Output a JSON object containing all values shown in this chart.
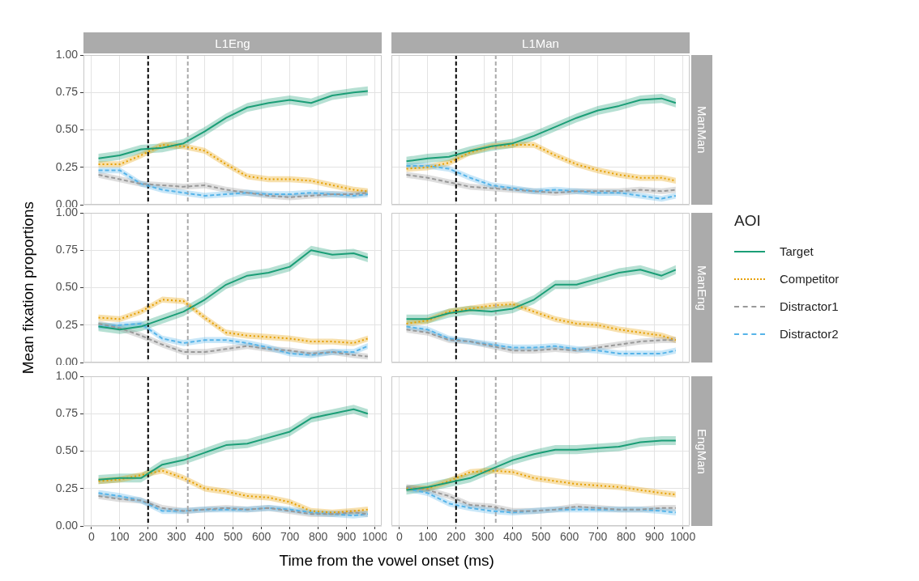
{
  "chart_data": [
    {
      "type": "line",
      "title": "L1Eng",
      "tick_labels": "y",
      "x": [
        25,
        100,
        175,
        250,
        325,
        400,
        475,
        550,
        625,
        700,
        775,
        850,
        925,
        975
      ],
      "xlim": [
        -28,
        1024
      ],
      "xticks": [
        0,
        100,
        200,
        300,
        400,
        500,
        600,
        700,
        800,
        900,
        1000
      ],
      "ylim": [
        0,
        1
      ],
      "yticks": [
        {
          "value": 0,
          "label": "0.00"
        },
        {
          "value": 0.25,
          "label": "0.25"
        },
        {
          "value": 0.5,
          "label": "0.50"
        },
        {
          "value": 0.75,
          "label": "0.75"
        },
        {
          "value": 1,
          "label": "1.00"
        }
      ],
      "grid": true,
      "ref_lines": [
        {
          "axis": "x",
          "value": 200,
          "color": "#000000",
          "line_style": "dashed"
        },
        {
          "axis": "x",
          "value": 340,
          "color": "#aaaaaa",
          "line_style": "dashed"
        }
      ],
      "series": [
        {
          "color": "#1b9e77",
          "line_style": "solid",
          "values": [
            0.31,
            0.33,
            0.37,
            0.38,
            0.41,
            0.49,
            0.58,
            0.65,
            0.68,
            0.7,
            0.68,
            0.73,
            0.75,
            0.76
          ],
          "lower": [
            0.28,
            0.3,
            0.34,
            0.35,
            0.38,
            0.46,
            0.55,
            0.62,
            0.65,
            0.67,
            0.65,
            0.7,
            0.72,
            0.73
          ],
          "upper": [
            0.34,
            0.36,
            0.4,
            0.41,
            0.44,
            0.52,
            0.61,
            0.68,
            0.71,
            0.73,
            0.71,
            0.76,
            0.78,
            0.79
          ]
        },
        {
          "color": "#e69f00",
          "line_style": "dotted",
          "values": [
            0.27,
            0.27,
            0.33,
            0.4,
            0.39,
            0.36,
            0.27,
            0.19,
            0.17,
            0.17,
            0.16,
            0.13,
            0.1,
            0.09
          ],
          "lower": [
            0.25,
            0.25,
            0.31,
            0.38,
            0.37,
            0.34,
            0.25,
            0.17,
            0.15,
            0.15,
            0.14,
            0.11,
            0.08,
            0.07
          ],
          "upper": [
            0.29,
            0.29,
            0.35,
            0.42,
            0.41,
            0.38,
            0.29,
            0.21,
            0.19,
            0.19,
            0.18,
            0.15,
            0.12,
            0.11
          ]
        },
        {
          "color": "#999999",
          "line_style": "dashed",
          "values": [
            0.2,
            0.17,
            0.14,
            0.13,
            0.12,
            0.13,
            0.1,
            0.08,
            0.06,
            0.05,
            0.06,
            0.07,
            0.07,
            0.08
          ],
          "lower": [
            0.18,
            0.15,
            0.12,
            0.11,
            0.1,
            0.11,
            0.08,
            0.06,
            0.04,
            0.03,
            0.04,
            0.05,
            0.05,
            0.06
          ],
          "upper": [
            0.22,
            0.19,
            0.16,
            0.15,
            0.14,
            0.15,
            0.12,
            0.1,
            0.08,
            0.07,
            0.08,
            0.09,
            0.09,
            0.1
          ]
        },
        {
          "color": "#56b4e9",
          "line_style": "dashed",
          "values": [
            0.23,
            0.23,
            0.14,
            0.1,
            0.08,
            0.06,
            0.07,
            0.08,
            0.07,
            0.07,
            0.08,
            0.07,
            0.06,
            0.07
          ],
          "lower": [
            0.21,
            0.21,
            0.12,
            0.08,
            0.06,
            0.04,
            0.05,
            0.06,
            0.05,
            0.05,
            0.06,
            0.05,
            0.04,
            0.05
          ],
          "upper": [
            0.25,
            0.25,
            0.16,
            0.12,
            0.1,
            0.08,
            0.09,
            0.1,
            0.09,
            0.09,
            0.1,
            0.09,
            0.08,
            0.09
          ]
        }
      ]
    },
    {
      "type": "line",
      "title": "L1Man",
      "y2label": "ManMan",
      "tick_labels": false,
      "x": [
        25,
        100,
        175,
        250,
        325,
        400,
        475,
        550,
        625,
        700,
        775,
        850,
        925,
        975
      ],
      "xlim": [
        -28,
        1024
      ],
      "xticks": [
        0,
        100,
        200,
        300,
        400,
        500,
        600,
        700,
        800,
        900,
        1000
      ],
      "ylim": [
        0,
        1
      ],
      "yticks": [
        0,
        0.25,
        0.5,
        0.75,
        1
      ],
      "grid": true,
      "ref_lines": [
        {
          "axis": "x",
          "value": 200,
          "color": "#000000",
          "line_style": "dashed"
        },
        {
          "axis": "x",
          "value": 340,
          "color": "#aaaaaa",
          "line_style": "dashed"
        }
      ],
      "series": [
        {
          "color": "#1b9e77",
          "line_style": "solid",
          "values": [
            0.29,
            0.31,
            0.32,
            0.36,
            0.39,
            0.41,
            0.46,
            0.52,
            0.58,
            0.63,
            0.66,
            0.7,
            0.71,
            0.68
          ],
          "lower": [
            0.26,
            0.28,
            0.29,
            0.33,
            0.36,
            0.38,
            0.43,
            0.49,
            0.55,
            0.6,
            0.63,
            0.67,
            0.68,
            0.65
          ],
          "upper": [
            0.32,
            0.34,
            0.35,
            0.39,
            0.42,
            0.44,
            0.49,
            0.55,
            0.61,
            0.66,
            0.69,
            0.73,
            0.74,
            0.71
          ]
        },
        {
          "color": "#e69f00",
          "line_style": "dotted",
          "values": [
            0.24,
            0.25,
            0.28,
            0.35,
            0.39,
            0.4,
            0.4,
            0.33,
            0.27,
            0.23,
            0.2,
            0.18,
            0.18,
            0.16
          ],
          "lower": [
            0.22,
            0.23,
            0.26,
            0.33,
            0.37,
            0.38,
            0.38,
            0.31,
            0.25,
            0.21,
            0.18,
            0.16,
            0.16,
            0.14
          ],
          "upper": [
            0.26,
            0.27,
            0.3,
            0.37,
            0.41,
            0.42,
            0.42,
            0.35,
            0.29,
            0.25,
            0.22,
            0.2,
            0.2,
            0.18
          ]
        },
        {
          "color": "#999999",
          "line_style": "dashed",
          "values": [
            0.2,
            0.18,
            0.15,
            0.12,
            0.11,
            0.1,
            0.09,
            0.08,
            0.09,
            0.09,
            0.09,
            0.1,
            0.09,
            0.1
          ],
          "lower": [
            0.18,
            0.16,
            0.13,
            0.1,
            0.09,
            0.08,
            0.07,
            0.06,
            0.07,
            0.07,
            0.07,
            0.08,
            0.07,
            0.08
          ],
          "upper": [
            0.22,
            0.2,
            0.17,
            0.14,
            0.13,
            0.12,
            0.11,
            0.1,
            0.11,
            0.11,
            0.11,
            0.12,
            0.11,
            0.12
          ]
        },
        {
          "color": "#56b4e9",
          "line_style": "dashed",
          "values": [
            0.26,
            0.26,
            0.24,
            0.18,
            0.13,
            0.11,
            0.09,
            0.1,
            0.09,
            0.08,
            0.08,
            0.06,
            0.04,
            0.06
          ],
          "lower": [
            0.24,
            0.24,
            0.22,
            0.16,
            0.11,
            0.09,
            0.07,
            0.08,
            0.07,
            0.06,
            0.06,
            0.04,
            0.02,
            0.04
          ],
          "upper": [
            0.28,
            0.28,
            0.26,
            0.2,
            0.15,
            0.13,
            0.11,
            0.12,
            0.11,
            0.1,
            0.1,
            0.08,
            0.06,
            0.08
          ]
        }
      ]
    },
    {
      "type": "line",
      "ylabel": "Mean fixation proportions",
      "tick_labels": "y",
      "x": [
        25,
        100,
        175,
        250,
        325,
        400,
        475,
        550,
        625,
        700,
        775,
        850,
        925,
        975
      ],
      "xlim": [
        -28,
        1024
      ],
      "xticks": [
        0,
        100,
        200,
        300,
        400,
        500,
        600,
        700,
        800,
        900,
        1000
      ],
      "ylim": [
        0,
        1
      ],
      "yticks": [
        {
          "value": 0,
          "label": "0.00"
        },
        {
          "value": 0.25,
          "label": "0.25"
        },
        {
          "value": 0.5,
          "label": "0.50"
        },
        {
          "value": 0.75,
          "label": "0.75"
        },
        {
          "value": 1,
          "label": "1.00"
        }
      ],
      "grid": true,
      "ref_lines": [
        {
          "axis": "x",
          "value": 200,
          "color": "#000000",
          "line_style": "dashed"
        },
        {
          "axis": "x",
          "value": 340,
          "color": "#aaaaaa",
          "line_style": "dashed"
        }
      ],
      "series": [
        {
          "color": "#1b9e77",
          "line_style": "solid",
          "values": [
            0.24,
            0.22,
            0.24,
            0.29,
            0.34,
            0.42,
            0.52,
            0.58,
            0.6,
            0.64,
            0.75,
            0.72,
            0.73,
            0.7
          ],
          "lower": [
            0.21,
            0.19,
            0.21,
            0.26,
            0.31,
            0.39,
            0.49,
            0.55,
            0.57,
            0.61,
            0.72,
            0.69,
            0.7,
            0.67
          ],
          "upper": [
            0.27,
            0.25,
            0.27,
            0.32,
            0.37,
            0.45,
            0.55,
            0.61,
            0.63,
            0.67,
            0.78,
            0.75,
            0.76,
            0.73
          ]
        },
        {
          "color": "#e69f00",
          "line_style": "dotted",
          "values": [
            0.3,
            0.29,
            0.34,
            0.42,
            0.41,
            0.3,
            0.2,
            0.18,
            0.17,
            0.16,
            0.14,
            0.14,
            0.13,
            0.16
          ],
          "lower": [
            0.28,
            0.27,
            0.32,
            0.4,
            0.39,
            0.28,
            0.18,
            0.16,
            0.15,
            0.14,
            0.12,
            0.12,
            0.11,
            0.14
          ],
          "upper": [
            0.32,
            0.31,
            0.36,
            0.44,
            0.43,
            0.32,
            0.22,
            0.2,
            0.19,
            0.18,
            0.16,
            0.16,
            0.15,
            0.18
          ]
        },
        {
          "color": "#999999",
          "line_style": "dashed",
          "values": [
            0.26,
            0.23,
            0.18,
            0.12,
            0.07,
            0.07,
            0.09,
            0.11,
            0.09,
            0.08,
            0.06,
            0.07,
            0.05,
            0.04
          ],
          "lower": [
            0.24,
            0.21,
            0.16,
            0.1,
            0.05,
            0.05,
            0.07,
            0.09,
            0.07,
            0.06,
            0.04,
            0.05,
            0.03,
            0.02
          ],
          "upper": [
            0.28,
            0.25,
            0.2,
            0.14,
            0.09,
            0.09,
            0.11,
            0.13,
            0.11,
            0.1,
            0.08,
            0.09,
            0.07,
            0.06
          ]
        },
        {
          "color": "#56b4e9",
          "line_style": "dashed",
          "values": [
            0.24,
            0.25,
            0.26,
            0.16,
            0.13,
            0.15,
            0.15,
            0.13,
            0.1,
            0.06,
            0.05,
            0.07,
            0.07,
            0.11
          ],
          "lower": [
            0.22,
            0.23,
            0.24,
            0.14,
            0.11,
            0.13,
            0.13,
            0.11,
            0.08,
            0.04,
            0.03,
            0.05,
            0.05,
            0.09
          ],
          "upper": [
            0.26,
            0.27,
            0.28,
            0.18,
            0.15,
            0.17,
            0.17,
            0.15,
            0.12,
            0.08,
            0.07,
            0.09,
            0.09,
            0.13
          ]
        }
      ]
    },
    {
      "type": "line",
      "y2label": "ManEng",
      "tick_labels": false,
      "legend": "right",
      "legend_title": "AOI",
      "x": [
        25,
        100,
        175,
        250,
        325,
        400,
        475,
        550,
        625,
        700,
        775,
        850,
        925,
        975
      ],
      "xlim": [
        -28,
        1024
      ],
      "xticks": [
        0,
        100,
        200,
        300,
        400,
        500,
        600,
        700,
        800,
        900,
        1000
      ],
      "ylim": [
        0,
        1
      ],
      "yticks": [
        0,
        0.25,
        0.5,
        0.75,
        1
      ],
      "grid": true,
      "ref_lines": [
        {
          "axis": "x",
          "value": 200,
          "color": "#000000",
          "line_style": "dashed"
        },
        {
          "axis": "x",
          "value": 340,
          "color": "#aaaaaa",
          "line_style": "dashed"
        }
      ],
      "series": [
        {
          "name": "Target",
          "color": "#1b9e77",
          "line_style": "solid",
          "values": [
            0.29,
            0.29,
            0.33,
            0.35,
            0.34,
            0.36,
            0.42,
            0.52,
            0.52,
            0.56,
            0.6,
            0.62,
            0.58,
            0.62
          ],
          "lower": [
            0.26,
            0.26,
            0.3,
            0.32,
            0.31,
            0.33,
            0.39,
            0.49,
            0.49,
            0.53,
            0.57,
            0.59,
            0.55,
            0.59
          ],
          "upper": [
            0.32,
            0.32,
            0.36,
            0.38,
            0.37,
            0.39,
            0.45,
            0.55,
            0.55,
            0.59,
            0.63,
            0.65,
            0.61,
            0.65
          ]
        },
        {
          "name": "Competitor",
          "color": "#e69f00",
          "line_style": "dotted",
          "values": [
            0.26,
            0.28,
            0.34,
            0.36,
            0.38,
            0.39,
            0.34,
            0.29,
            0.26,
            0.25,
            0.22,
            0.2,
            0.18,
            0.15
          ],
          "lower": [
            0.24,
            0.26,
            0.32,
            0.34,
            0.36,
            0.37,
            0.32,
            0.27,
            0.24,
            0.23,
            0.2,
            0.18,
            0.16,
            0.13
          ],
          "upper": [
            0.28,
            0.3,
            0.36,
            0.38,
            0.4,
            0.41,
            0.36,
            0.31,
            0.28,
            0.27,
            0.24,
            0.22,
            0.2,
            0.17
          ]
        },
        {
          "name": "Distractor1",
          "color": "#999999",
          "line_style": "dashed",
          "values": [
            0.22,
            0.2,
            0.15,
            0.14,
            0.11,
            0.08,
            0.08,
            0.09,
            0.08,
            0.1,
            0.12,
            0.14,
            0.15,
            0.15
          ],
          "lower": [
            0.2,
            0.18,
            0.13,
            0.12,
            0.09,
            0.06,
            0.06,
            0.07,
            0.06,
            0.08,
            0.1,
            0.12,
            0.13,
            0.13
          ],
          "upper": [
            0.24,
            0.22,
            0.17,
            0.16,
            0.13,
            0.1,
            0.1,
            0.11,
            0.1,
            0.12,
            0.14,
            0.16,
            0.17,
            0.17
          ]
        },
        {
          "name": "Distractor2",
          "color": "#56b4e9",
          "line_style": "dashed",
          "values": [
            0.24,
            0.22,
            0.16,
            0.14,
            0.12,
            0.1,
            0.1,
            0.11,
            0.09,
            0.08,
            0.06,
            0.06,
            0.06,
            0.08
          ],
          "lower": [
            0.22,
            0.2,
            0.14,
            0.12,
            0.1,
            0.08,
            0.08,
            0.09,
            0.07,
            0.06,
            0.04,
            0.04,
            0.04,
            0.06
          ],
          "upper": [
            0.26,
            0.24,
            0.18,
            0.16,
            0.14,
            0.12,
            0.12,
            0.13,
            0.11,
            0.1,
            0.08,
            0.08,
            0.08,
            0.1
          ]
        }
      ]
    },
    {
      "type": "line",
      "xlabel": "Time from the vowel onset (ms)",
      "x": [
        25,
        100,
        175,
        250,
        325,
        400,
        475,
        550,
        625,
        700,
        775,
        850,
        925,
        975
      ],
      "xlim": [
        -28,
        1024
      ],
      "xticks": [
        0,
        100,
        200,
        300,
        400,
        500,
        600,
        700,
        800,
        900,
        1000
      ],
      "ylim": [
        0,
        1
      ],
      "yticks": [
        {
          "value": 0,
          "label": "0.00"
        },
        {
          "value": 0.25,
          "label": "0.25"
        },
        {
          "value": 0.5,
          "label": "0.50"
        },
        {
          "value": 0.75,
          "label": "0.75"
        },
        {
          "value": 1,
          "label": "1.00"
        }
      ],
      "grid": true,
      "ref_lines": [
        {
          "axis": "x",
          "value": 200,
          "color": "#000000",
          "line_style": "dashed"
        },
        {
          "axis": "x",
          "value": 340,
          "color": "#aaaaaa",
          "line_style": "dashed"
        }
      ],
      "series": [
        {
          "color": "#1b9e77",
          "line_style": "solid",
          "values": [
            0.31,
            0.32,
            0.32,
            0.41,
            0.44,
            0.49,
            0.54,
            0.55,
            0.59,
            0.63,
            0.72,
            0.75,
            0.78,
            0.75
          ],
          "lower": [
            0.28,
            0.29,
            0.29,
            0.38,
            0.41,
            0.46,
            0.51,
            0.52,
            0.56,
            0.6,
            0.69,
            0.72,
            0.75,
            0.72
          ],
          "upper": [
            0.34,
            0.35,
            0.35,
            0.44,
            0.47,
            0.52,
            0.57,
            0.58,
            0.62,
            0.66,
            0.75,
            0.78,
            0.81,
            0.78
          ]
        },
        {
          "color": "#e69f00",
          "line_style": "dotted",
          "values": [
            0.3,
            0.31,
            0.34,
            0.37,
            0.32,
            0.25,
            0.23,
            0.2,
            0.19,
            0.16,
            0.1,
            0.09,
            0.1,
            0.11
          ],
          "lower": [
            0.28,
            0.29,
            0.32,
            0.35,
            0.3,
            0.23,
            0.21,
            0.18,
            0.17,
            0.14,
            0.08,
            0.07,
            0.08,
            0.09
          ],
          "upper": [
            0.32,
            0.33,
            0.36,
            0.39,
            0.34,
            0.27,
            0.25,
            0.22,
            0.21,
            0.18,
            0.12,
            0.11,
            0.12,
            0.13
          ]
        },
        {
          "color": "#999999",
          "line_style": "dashed",
          "values": [
            0.2,
            0.18,
            0.17,
            0.12,
            0.1,
            0.11,
            0.12,
            0.11,
            0.12,
            0.1,
            0.08,
            0.08,
            0.09,
            0.08
          ],
          "lower": [
            0.18,
            0.16,
            0.15,
            0.1,
            0.08,
            0.09,
            0.1,
            0.09,
            0.1,
            0.08,
            0.06,
            0.06,
            0.07,
            0.06
          ],
          "upper": [
            0.22,
            0.2,
            0.19,
            0.14,
            0.12,
            0.13,
            0.14,
            0.13,
            0.14,
            0.12,
            0.1,
            0.1,
            0.11,
            0.1
          ]
        },
        {
          "color": "#56b4e9",
          "line_style": "dashed",
          "values": [
            0.22,
            0.2,
            0.17,
            0.1,
            0.1,
            0.11,
            0.11,
            0.11,
            0.12,
            0.11,
            0.09,
            0.08,
            0.07,
            0.08
          ],
          "lower": [
            0.2,
            0.18,
            0.15,
            0.08,
            0.08,
            0.09,
            0.09,
            0.09,
            0.1,
            0.09,
            0.07,
            0.06,
            0.05,
            0.06
          ],
          "upper": [
            0.24,
            0.22,
            0.19,
            0.12,
            0.12,
            0.13,
            0.13,
            0.13,
            0.14,
            0.13,
            0.11,
            0.1,
            0.09,
            0.1
          ]
        }
      ]
    },
    {
      "type": "line",
      "y2label": "EngMan",
      "tick_labels": "x",
      "x": [
        25,
        100,
        175,
        250,
        325,
        400,
        475,
        550,
        625,
        700,
        775,
        850,
        925,
        975
      ],
      "xlim": [
        -28,
        1024
      ],
      "xticks": [
        0,
        100,
        200,
        300,
        400,
        500,
        600,
        700,
        800,
        900,
        1000
      ],
      "ylim": [
        0,
        1
      ],
      "yticks": [
        0,
        0.25,
        0.5,
        0.75,
        1
      ],
      "grid": true,
      "ref_lines": [
        {
          "axis": "x",
          "value": 200,
          "color": "#000000",
          "line_style": "dashed"
        },
        {
          "axis": "x",
          "value": 340,
          "color": "#aaaaaa",
          "line_style": "dashed"
        }
      ],
      "series": [
        {
          "color": "#1b9e77",
          "line_style": "solid",
          "values": [
            0.24,
            0.26,
            0.29,
            0.32,
            0.38,
            0.44,
            0.48,
            0.51,
            0.51,
            0.52,
            0.53,
            0.56,
            0.57,
            0.57
          ],
          "lower": [
            0.21,
            0.23,
            0.26,
            0.29,
            0.35,
            0.41,
            0.45,
            0.48,
            0.48,
            0.49,
            0.5,
            0.53,
            0.54,
            0.54
          ],
          "upper": [
            0.27,
            0.29,
            0.32,
            0.35,
            0.41,
            0.47,
            0.51,
            0.54,
            0.54,
            0.55,
            0.56,
            0.59,
            0.6,
            0.6
          ]
        },
        {
          "color": "#e69f00",
          "line_style": "dotted",
          "values": [
            0.25,
            0.25,
            0.3,
            0.36,
            0.37,
            0.36,
            0.32,
            0.3,
            0.28,
            0.27,
            0.26,
            0.24,
            0.22,
            0.21
          ],
          "lower": [
            0.23,
            0.23,
            0.28,
            0.34,
            0.35,
            0.34,
            0.3,
            0.28,
            0.26,
            0.25,
            0.24,
            0.22,
            0.2,
            0.19
          ],
          "upper": [
            0.27,
            0.27,
            0.32,
            0.38,
            0.39,
            0.38,
            0.34,
            0.32,
            0.3,
            0.29,
            0.28,
            0.26,
            0.24,
            0.23
          ]
        },
        {
          "color": "#999999",
          "line_style": "dashed",
          "values": [
            0.26,
            0.24,
            0.2,
            0.14,
            0.13,
            0.1,
            0.1,
            0.11,
            0.13,
            0.12,
            0.11,
            0.11,
            0.12,
            0.12
          ],
          "lower": [
            0.24,
            0.22,
            0.18,
            0.12,
            0.11,
            0.08,
            0.08,
            0.09,
            0.11,
            0.1,
            0.09,
            0.09,
            0.1,
            0.1
          ],
          "upper": [
            0.28,
            0.26,
            0.22,
            0.16,
            0.15,
            0.12,
            0.12,
            0.13,
            0.15,
            0.14,
            0.13,
            0.13,
            0.14,
            0.14
          ]
        },
        {
          "color": "#56b4e9",
          "line_style": "dashed",
          "values": [
            0.25,
            0.22,
            0.15,
            0.12,
            0.1,
            0.09,
            0.1,
            0.11,
            0.11,
            0.11,
            0.11,
            0.11,
            0.1,
            0.09
          ],
          "lower": [
            0.23,
            0.2,
            0.13,
            0.1,
            0.08,
            0.07,
            0.08,
            0.09,
            0.09,
            0.09,
            0.09,
            0.09,
            0.08,
            0.07
          ],
          "upper": [
            0.27,
            0.24,
            0.17,
            0.14,
            0.12,
            0.11,
            0.12,
            0.13,
            0.13,
            0.13,
            0.13,
            0.13,
            0.12,
            0.11
          ]
        }
      ]
    }
  ]
}
